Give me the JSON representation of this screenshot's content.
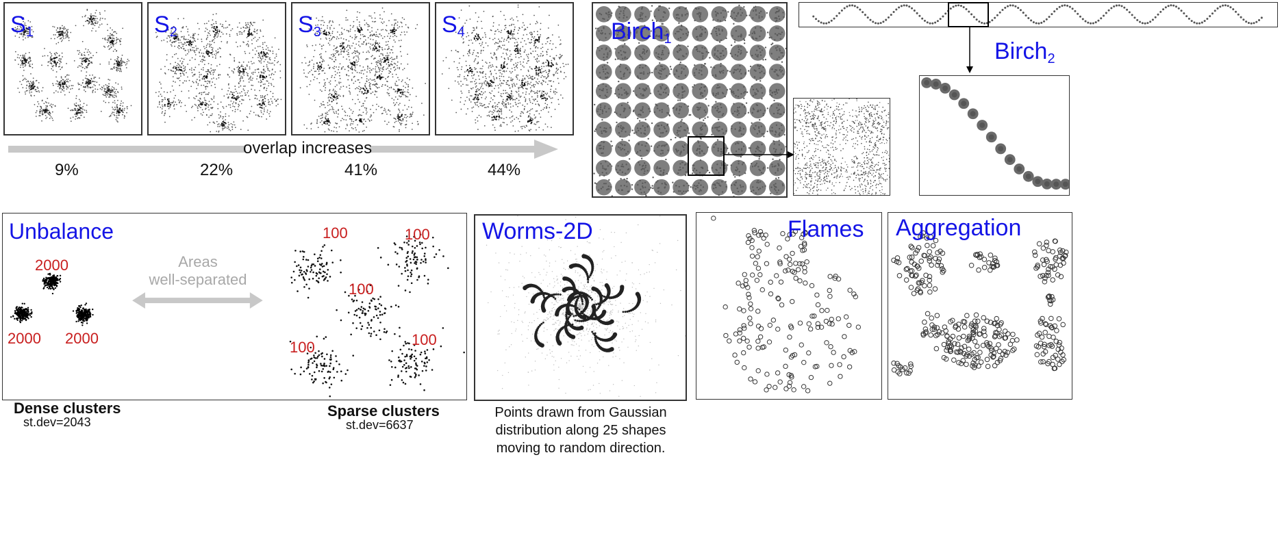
{
  "s_panels": [
    {
      "label": "S",
      "sub": "1",
      "percent": "9%"
    },
    {
      "label": "S",
      "sub": "2",
      "percent": "22%"
    },
    {
      "label": "S",
      "sub": "3",
      "percent": "41%"
    },
    {
      "label": "S",
      "sub": "4",
      "percent": "44%"
    }
  ],
  "overlap_label": "overlap increases",
  "birch1": {
    "label": "Birch",
    "sub": "1"
  },
  "birch2": {
    "label": "Birch",
    "sub": "2"
  },
  "unbalance": {
    "title": "Unbalance",
    "dense_counts": [
      "2000",
      "2000",
      "2000"
    ],
    "sparse_counts": [
      "100",
      "100",
      "100",
      "100",
      "100"
    ],
    "areas_line1": "Areas",
    "areas_line2": "well-separated",
    "dense_label": "Dense clusters",
    "dense_std": "st.dev=2043",
    "sparse_label": "Sparse clusters",
    "sparse_std": "st.dev=6637"
  },
  "worms": {
    "title": "Worms-2D",
    "caption_line1": "Points drawn from Gaussian",
    "caption_line2": "distribution along 25 shapes",
    "caption_line3": "moving to random direction."
  },
  "flames": {
    "title": "Flames"
  },
  "aggregation": {
    "title": "Aggregation"
  },
  "colors": {
    "title_blue": "#1414e6",
    "count_red": "#c81e1e",
    "arrow_grey": "#c8c8c8"
  }
}
